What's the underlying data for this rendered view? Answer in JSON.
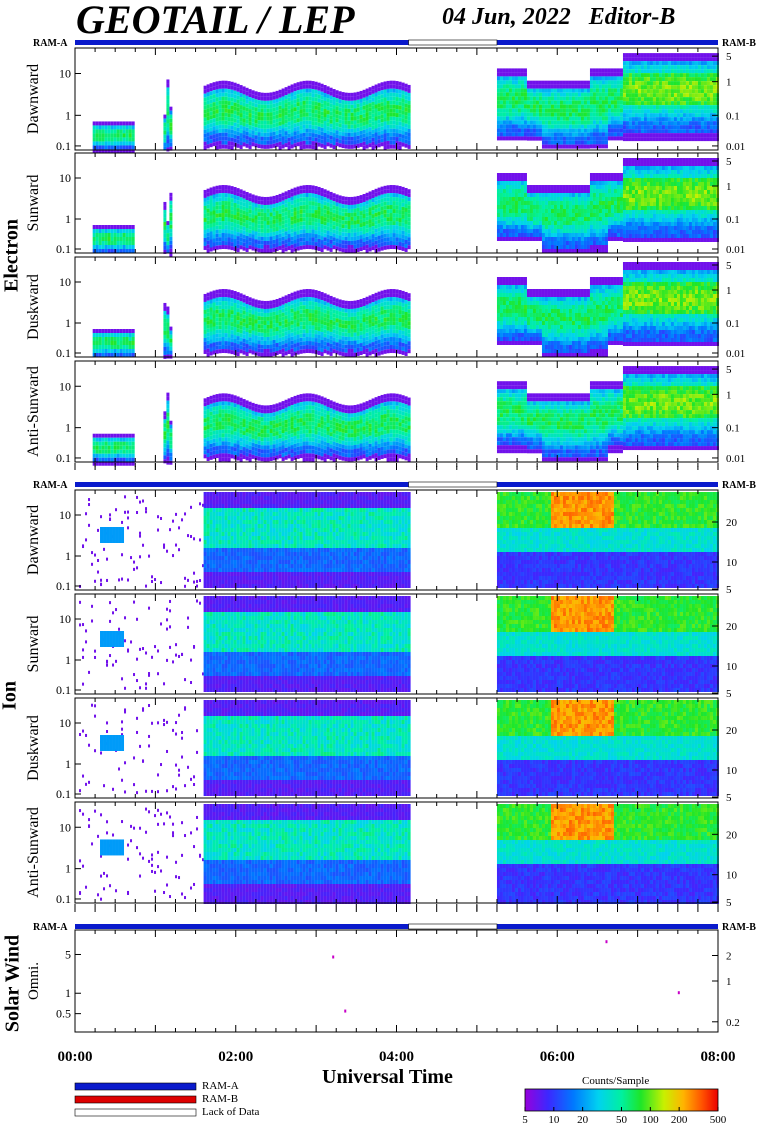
{
  "header": {
    "title": "GEOTAIL / LEP",
    "date": "04 Jun, 2022",
    "editor": "Editor-B"
  },
  "groups": [
    "Electron",
    "Ion",
    "Solar Wind"
  ],
  "ram": {
    "a": "RAM-A",
    "b": "RAM-B"
  },
  "xaxis": {
    "label": "Universal Time",
    "ticks": [
      "00:00",
      "02:00",
      "04:00",
      "06:00",
      "08:00"
    ]
  },
  "legend": {
    "ram_a": "RAM-A",
    "ram_b": "RAM-B",
    "lack": "Lack of Data",
    "colorbar_title": "Counts/Sample",
    "colorbar_ticks": [
      "5",
      "10",
      "20",
      "50",
      "100",
      "200",
      "500"
    ]
  },
  "colors": {
    "ram_a": "#0a1acc",
    "ram_b": "#dd0000",
    "lack": "#ffffff"
  },
  "chart_data": [
    {
      "type": "heatmap",
      "group": "Electron",
      "panel": "Dawnward",
      "ylabel": "Dawnward",
      "left_ticks": [
        "10",
        "1",
        "0.1"
      ],
      "right_ticks": [
        "5",
        "1",
        "0.1",
        "0.01"
      ],
      "data_segments_hours": [
        [
          0.4,
          0.7
        ],
        [
          1.6,
          4.15
        ],
        [
          5.25,
          8.0
        ]
      ]
    },
    {
      "type": "heatmap",
      "group": "Electron",
      "panel": "Sunward",
      "ylabel": "Sunward",
      "left_ticks": [
        "10",
        "1",
        "0.1"
      ],
      "right_ticks": [
        "5",
        "1",
        "0.1",
        "0.01"
      ],
      "data_segments_hours": [
        [
          0.4,
          0.7
        ],
        [
          1.6,
          4.15
        ],
        [
          5.25,
          8.0
        ]
      ]
    },
    {
      "type": "heatmap",
      "group": "Electron",
      "panel": "Duskward",
      "ylabel": "Duskward",
      "left_ticks": [
        "10",
        "1",
        "0.1"
      ],
      "right_ticks": [
        "5",
        "1",
        "0.1",
        "0.01"
      ],
      "data_segments_hours": [
        [
          0.4,
          0.7
        ],
        [
          1.6,
          4.15
        ],
        [
          5.25,
          8.0
        ]
      ]
    },
    {
      "type": "heatmap",
      "group": "Electron",
      "panel": "Anti-Sunward",
      "ylabel": "Anti-Sunward",
      "left_ticks": [
        "10",
        "1",
        "0.1"
      ],
      "right_ticks": [
        "5",
        "1",
        "0.1",
        "0.01"
      ],
      "data_segments_hours": [
        [
          0.4,
          0.7
        ],
        [
          1.6,
          4.15
        ],
        [
          5.25,
          8.0
        ]
      ]
    },
    {
      "type": "heatmap",
      "group": "Ion",
      "panel": "Dawnward",
      "ylabel": "Dawnward",
      "left_ticks": [
        "10",
        "1",
        "0.1"
      ],
      "right_ticks": [
        "20",
        "10",
        "5"
      ],
      "data_segments_hours": [
        [
          0.0,
          1.6
        ],
        [
          1.6,
          4.15
        ],
        [
          5.25,
          8.0
        ]
      ]
    },
    {
      "type": "heatmap",
      "group": "Ion",
      "panel": "Sunward",
      "ylabel": "Sunward",
      "left_ticks": [
        "10",
        "1",
        "0.1"
      ],
      "right_ticks": [
        "20",
        "10",
        "5"
      ],
      "data_segments_hours": [
        [
          0.0,
          1.6
        ],
        [
          1.6,
          4.15
        ],
        [
          5.25,
          8.0
        ]
      ]
    },
    {
      "type": "heatmap",
      "group": "Ion",
      "panel": "Duskward",
      "ylabel": "Duskward",
      "left_ticks": [
        "10",
        "1",
        "0.1"
      ],
      "right_ticks": [
        "20",
        "10",
        "5"
      ],
      "data_segments_hours": [
        [
          0.0,
          1.6
        ],
        [
          1.6,
          4.15
        ],
        [
          5.25,
          8.0
        ]
      ]
    },
    {
      "type": "heatmap",
      "group": "Ion",
      "panel": "Anti-Sunward",
      "ylabel": "Anti-Sunward",
      "left_ticks": [
        "10",
        "1",
        "0.1"
      ],
      "right_ticks": [
        "20",
        "10",
        "5"
      ],
      "data_segments_hours": [
        [
          0.0,
          1.6
        ],
        [
          1.6,
          4.15
        ],
        [
          5.25,
          8.0
        ]
      ]
    },
    {
      "type": "scatter",
      "group": "Solar Wind",
      "panel": "Omni.",
      "ylabel": "Omni.",
      "left_ticks": [
        "5",
        "1",
        "0.5"
      ],
      "right_ticks": [
        "2",
        "1",
        "0.2"
      ],
      "points_hours": [
        3.2,
        3.35,
        6.6,
        7.5
      ]
    }
  ]
}
